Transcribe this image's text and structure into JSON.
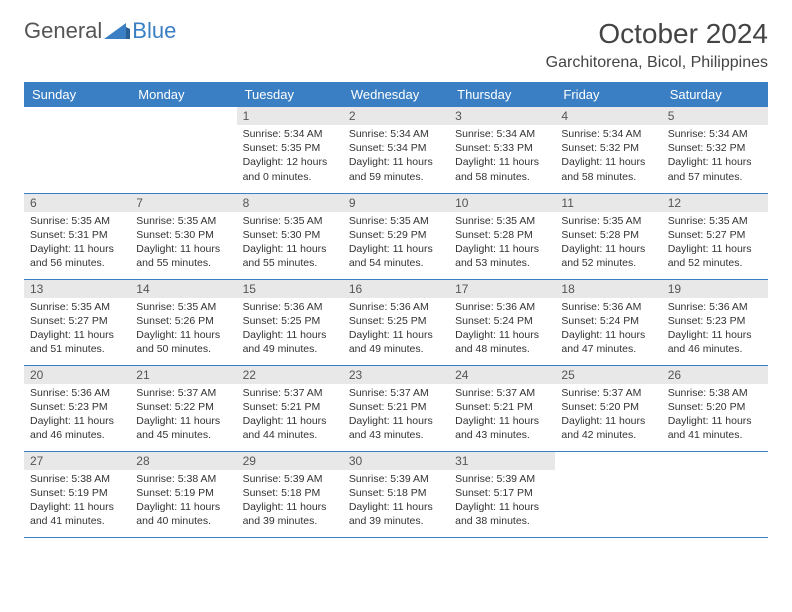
{
  "brand": {
    "general": "General",
    "blue": "Blue"
  },
  "header": {
    "month_title": "October 2024",
    "location": "Garchitorena, Bicol, Philippines"
  },
  "colors": {
    "header_bg": "#3a7fc4",
    "header_text": "#ffffff",
    "daynum_bg": "#e8e8e8",
    "row_divider": "#3a7fc4",
    "body_text": "#333333"
  },
  "day_headers": [
    "Sunday",
    "Monday",
    "Tuesday",
    "Wednesday",
    "Thursday",
    "Friday",
    "Saturday"
  ],
  "weeks": [
    [
      null,
      null,
      {
        "n": "1",
        "sr": "5:34 AM",
        "ss": "5:35 PM",
        "dl": "12 hours and 0 minutes."
      },
      {
        "n": "2",
        "sr": "5:34 AM",
        "ss": "5:34 PM",
        "dl": "11 hours and 59 minutes."
      },
      {
        "n": "3",
        "sr": "5:34 AM",
        "ss": "5:33 PM",
        "dl": "11 hours and 58 minutes."
      },
      {
        "n": "4",
        "sr": "5:34 AM",
        "ss": "5:32 PM",
        "dl": "11 hours and 58 minutes."
      },
      {
        "n": "5",
        "sr": "5:34 AM",
        "ss": "5:32 PM",
        "dl": "11 hours and 57 minutes."
      }
    ],
    [
      {
        "n": "6",
        "sr": "5:35 AM",
        "ss": "5:31 PM",
        "dl": "11 hours and 56 minutes."
      },
      {
        "n": "7",
        "sr": "5:35 AM",
        "ss": "5:30 PM",
        "dl": "11 hours and 55 minutes."
      },
      {
        "n": "8",
        "sr": "5:35 AM",
        "ss": "5:30 PM",
        "dl": "11 hours and 55 minutes."
      },
      {
        "n": "9",
        "sr": "5:35 AM",
        "ss": "5:29 PM",
        "dl": "11 hours and 54 minutes."
      },
      {
        "n": "10",
        "sr": "5:35 AM",
        "ss": "5:28 PM",
        "dl": "11 hours and 53 minutes."
      },
      {
        "n": "11",
        "sr": "5:35 AM",
        "ss": "5:28 PM",
        "dl": "11 hours and 52 minutes."
      },
      {
        "n": "12",
        "sr": "5:35 AM",
        "ss": "5:27 PM",
        "dl": "11 hours and 52 minutes."
      }
    ],
    [
      {
        "n": "13",
        "sr": "5:35 AM",
        "ss": "5:27 PM",
        "dl": "11 hours and 51 minutes."
      },
      {
        "n": "14",
        "sr": "5:35 AM",
        "ss": "5:26 PM",
        "dl": "11 hours and 50 minutes."
      },
      {
        "n": "15",
        "sr": "5:36 AM",
        "ss": "5:25 PM",
        "dl": "11 hours and 49 minutes."
      },
      {
        "n": "16",
        "sr": "5:36 AM",
        "ss": "5:25 PM",
        "dl": "11 hours and 49 minutes."
      },
      {
        "n": "17",
        "sr": "5:36 AM",
        "ss": "5:24 PM",
        "dl": "11 hours and 48 minutes."
      },
      {
        "n": "18",
        "sr": "5:36 AM",
        "ss": "5:24 PM",
        "dl": "11 hours and 47 minutes."
      },
      {
        "n": "19",
        "sr": "5:36 AM",
        "ss": "5:23 PM",
        "dl": "11 hours and 46 minutes."
      }
    ],
    [
      {
        "n": "20",
        "sr": "5:36 AM",
        "ss": "5:23 PM",
        "dl": "11 hours and 46 minutes."
      },
      {
        "n": "21",
        "sr": "5:37 AM",
        "ss": "5:22 PM",
        "dl": "11 hours and 45 minutes."
      },
      {
        "n": "22",
        "sr": "5:37 AM",
        "ss": "5:21 PM",
        "dl": "11 hours and 44 minutes."
      },
      {
        "n": "23",
        "sr": "5:37 AM",
        "ss": "5:21 PM",
        "dl": "11 hours and 43 minutes."
      },
      {
        "n": "24",
        "sr": "5:37 AM",
        "ss": "5:21 PM",
        "dl": "11 hours and 43 minutes."
      },
      {
        "n": "25",
        "sr": "5:37 AM",
        "ss": "5:20 PM",
        "dl": "11 hours and 42 minutes."
      },
      {
        "n": "26",
        "sr": "5:38 AM",
        "ss": "5:20 PM",
        "dl": "11 hours and 41 minutes."
      }
    ],
    [
      {
        "n": "27",
        "sr": "5:38 AM",
        "ss": "5:19 PM",
        "dl": "11 hours and 41 minutes."
      },
      {
        "n": "28",
        "sr": "5:38 AM",
        "ss": "5:19 PM",
        "dl": "11 hours and 40 minutes."
      },
      {
        "n": "29",
        "sr": "5:39 AM",
        "ss": "5:18 PM",
        "dl": "11 hours and 39 minutes."
      },
      {
        "n": "30",
        "sr": "5:39 AM",
        "ss": "5:18 PM",
        "dl": "11 hours and 39 minutes."
      },
      {
        "n": "31",
        "sr": "5:39 AM",
        "ss": "5:17 PM",
        "dl": "11 hours and 38 minutes."
      },
      null,
      null
    ]
  ],
  "labels": {
    "sunrise": "Sunrise:",
    "sunset": "Sunset:",
    "daylight": "Daylight:"
  }
}
